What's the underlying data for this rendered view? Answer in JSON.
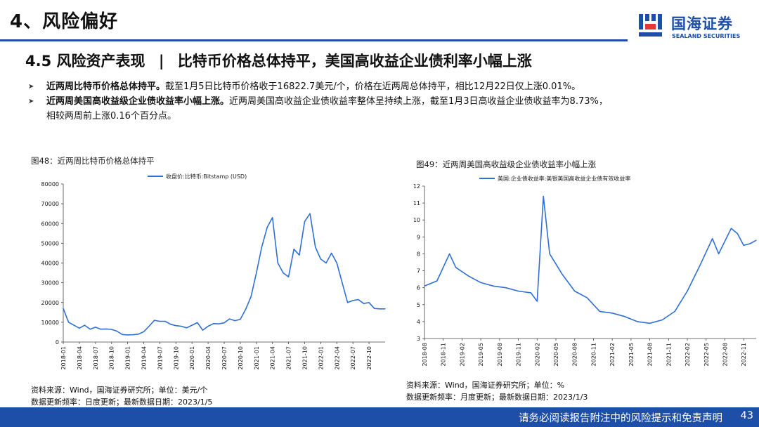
{
  "header": {
    "section_title": "4、风险偏好",
    "logo_cn": "国海证券",
    "logo_en": "SEALAND SECURITIES"
  },
  "headline": {
    "number": "4.5 风险资产表现",
    "separator": "|",
    "text": "比特币价格总体持平，美国高收益企业债利率小幅上涨"
  },
  "bullets": [
    {
      "bold": "近两周比特币价格总体持平。",
      "text": "截至1月5日比特币价格收于16822.7美元/个，价格在近两周总体持平，相比12月22日仅上涨0.01%。"
    },
    {
      "bold": "近两周美国高收益级企业债收益率小幅上涨。",
      "text": "近两周美国高收益企业债收益率整体呈持续上涨，截至1月3日高收益企业债收益率为8.73%，",
      "text2": "相较两周前上涨0.16个百分点。"
    }
  ],
  "colors": {
    "brand": "#1e4fa8",
    "line": "#2f6fd6"
  },
  "chart_data": [
    {
      "type": "line",
      "figure_title": "图48：近两周比特币价格总体持平",
      "legend": "收盘价:比特币:Bitstamp (USD)",
      "ylim": [
        0,
        80000
      ],
      "yticks": [
        0,
        10000,
        20000,
        30000,
        40000,
        50000,
        60000,
        70000,
        80000
      ],
      "xlim": [
        "2018-01",
        "2023-01"
      ],
      "xticks": [
        "2018-01",
        "2018-04",
        "2018-07",
        "2018-10",
        "2019-01",
        "2019-04",
        "2019-07",
        "2019-10",
        "2020-01",
        "2020-04",
        "2020-07",
        "2020-10",
        "2021-01",
        "2021-04",
        "2021-07",
        "2021-10",
        "2022-01",
        "2022-04",
        "2022-07",
        "2022-10"
      ],
      "series": [
        {
          "name": "收盘价:比特币:Bitstamp (USD)",
          "x": [
            "2018-01",
            "2018-02",
            "2018-03",
            "2018-04",
            "2018-05",
            "2018-06",
            "2018-07",
            "2018-08",
            "2018-09",
            "2018-10",
            "2018-11",
            "2018-12",
            "2019-01",
            "2019-02",
            "2019-03",
            "2019-04",
            "2019-05",
            "2019-06",
            "2019-07",
            "2019-08",
            "2019-09",
            "2019-10",
            "2019-11",
            "2019-12",
            "2020-01",
            "2020-02",
            "2020-03",
            "2020-04",
            "2020-05",
            "2020-06",
            "2020-07",
            "2020-08",
            "2020-09",
            "2020-10",
            "2020-11",
            "2020-12",
            "2021-01",
            "2021-02",
            "2021-03",
            "2021-04",
            "2021-05",
            "2021-06",
            "2021-07",
            "2021-08",
            "2021-09",
            "2021-10",
            "2021-11",
            "2021-12",
            "2022-01",
            "2022-02",
            "2022-03",
            "2022-04",
            "2022-05",
            "2022-06",
            "2022-07",
            "2022-08",
            "2022-09",
            "2022-10",
            "2022-11",
            "2022-12",
            "2023-01"
          ],
          "values": [
            17000,
            10000,
            8500,
            7000,
            8500,
            6500,
            7500,
            6500,
            6600,
            6400,
            5500,
            3800,
            3600,
            3700,
            4000,
            5200,
            8000,
            11000,
            10500,
            10500,
            9000,
            8300,
            8000,
            7200,
            8500,
            9800,
            6000,
            8000,
            9300,
            9200,
            9700,
            11700,
            10800,
            11500,
            16500,
            23000,
            35000,
            48000,
            58000,
            63000,
            40000,
            35000,
            33000,
            47000,
            44000,
            61000,
            65000,
            48000,
            42000,
            40000,
            45000,
            40000,
            30000,
            20000,
            21000,
            21500,
            19500,
            20000,
            17000,
            16800,
            16800
          ]
        }
      ],
      "source": "资料来源：Wind，国海证券研究所；单位：美元/个",
      "update": "数据更新频率：日度更新；最新数据日期：2023/1/5"
    },
    {
      "type": "line",
      "figure_title": "图49：近两周美国高收益级企业债收益率小幅上涨",
      "legend": "美国:企业债收益率:美银美国高收益企业债有效收益率",
      "ylim": [
        3,
        12
      ],
      "yticks": [
        3,
        4,
        5,
        6,
        7,
        8,
        9,
        10,
        11,
        12
      ],
      "xlim": [
        "2018-08",
        "2023-01"
      ],
      "xticks": [
        "2018-08",
        "2018-11",
        "2019-02",
        "2019-05",
        "2019-08",
        "2019-11",
        "2020-02",
        "2020-05",
        "2020-08",
        "2020-11",
        "2021-02",
        "2021-05",
        "2021-08",
        "2021-11",
        "2022-02",
        "2022-05",
        "2022-08",
        "2022-11"
      ],
      "series": [
        {
          "name": "美国:企业债收益率:美银美国高收益企业债有效收益率",
          "x": [
            "2018-08",
            "2018-10",
            "2018-12",
            "2019-01",
            "2019-03",
            "2019-05",
            "2019-07",
            "2019-09",
            "2019-11",
            "2020-01",
            "2020-02",
            "2020-03",
            "2020-04",
            "2020-06",
            "2020-08",
            "2020-10",
            "2020-12",
            "2021-02",
            "2021-04",
            "2021-06",
            "2021-08",
            "2021-10",
            "2021-12",
            "2022-02",
            "2022-04",
            "2022-06",
            "2022-07",
            "2022-09",
            "2022-10",
            "2022-11",
            "2022-12",
            "2023-01"
          ],
          "values": [
            6.1,
            6.4,
            8.0,
            7.2,
            6.7,
            6.3,
            6.1,
            6.0,
            5.8,
            5.7,
            5.2,
            11.4,
            8.0,
            6.8,
            5.8,
            5.4,
            4.6,
            4.5,
            4.3,
            4.0,
            3.9,
            4.1,
            4.6,
            5.8,
            7.3,
            8.9,
            8.0,
            9.5,
            9.2,
            8.5,
            8.6,
            8.8
          ]
        }
      ],
      "source": "资料来源：Wind，国海证券研究所；单位：%",
      "update": "数据更新频率：月度更新；最新数据日期：2023/1/3"
    }
  ],
  "footer": {
    "disclaimer": "请务必阅读报告附注中的风险提示和免责声明",
    "page": "43"
  }
}
